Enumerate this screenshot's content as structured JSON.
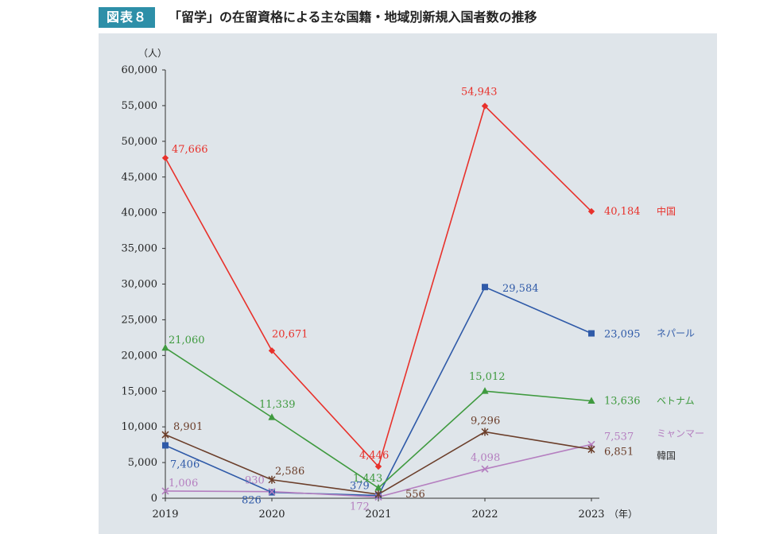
{
  "header": {
    "figure_no": "図表８",
    "title": "「留学」の在留資格による主な国籍・地域別新規入国者数の推移"
  },
  "chart_data": {
    "type": "line",
    "title": "「留学」の在留資格による主な国籍・地域別新規入国者数の推移",
    "ylabel": "（人）",
    "xlabel": "（年）",
    "categories": [
      "2019",
      "2020",
      "2021",
      "2022",
      "2023"
    ],
    "ylim": [
      0,
      60000
    ],
    "yticks": [
      0,
      5000,
      10000,
      15000,
      20000,
      25000,
      30000,
      35000,
      40000,
      45000,
      50000,
      55000,
      60000
    ],
    "ytick_labels": [
      "0",
      "5,000",
      "10,000",
      "15,000",
      "20,000",
      "25,000",
      "30,000",
      "35,000",
      "40,000",
      "45,000",
      "50,000",
      "55,000",
      "60,000"
    ],
    "grid": false,
    "legend": "series names labeled at line ends (right)",
    "series": [
      {
        "name": "中国",
        "color": "#e8312b",
        "marker": "diamond",
        "values": [
          47666,
          20671,
          4446,
          54943,
          40184
        ],
        "labels": [
          "47,666",
          "20,671",
          "4,446",
          "54,943",
          "40,184"
        ]
      },
      {
        "name": "ネパール",
        "color": "#2f5aa8",
        "marker": "square",
        "values": [
          7406,
          826,
          379,
          29584,
          23095
        ],
        "labels": [
          "7,406",
          "826",
          "379",
          "29,584",
          "23,095"
        ]
      },
      {
        "name": "ベトナム",
        "color": "#3f9a3f",
        "marker": "triangle",
        "values": [
          21060,
          11339,
          1443,
          15012,
          13636
        ],
        "labels": [
          "21,060",
          "11,339",
          "1,443",
          "15,012",
          "13,636"
        ]
      },
      {
        "name": "ミャンマー",
        "color": "#b57fc0",
        "marker": "x",
        "values": [
          1006,
          930,
          172,
          4098,
          7537
        ],
        "labels": [
          "1,006",
          "930",
          "172",
          "4,098",
          "7,537"
        ]
      },
      {
        "name": "韓国",
        "color": "#6b3e2a",
        "marker": "star",
        "values": [
          8901,
          2586,
          556,
          9296,
          6851
        ],
        "labels": [
          "8,901",
          "2,586",
          "556",
          "9,296",
          "6,851"
        ]
      }
    ]
  }
}
